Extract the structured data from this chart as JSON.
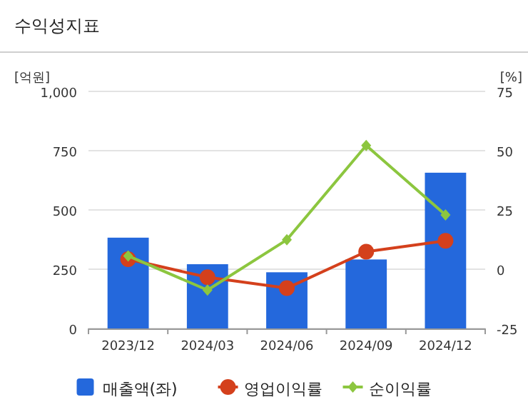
{
  "chart_data": {
    "type": "bar",
    "title": "수익성지표",
    "ylabel": "[억원]",
    "y2label": "[%]",
    "categories": [
      "2023/12",
      "2024/03",
      "2024/06",
      "2024/09",
      "2024/12"
    ],
    "series": [
      {
        "name": "매출액(좌)",
        "color": "#2468dc",
        "values": [
          383,
          271,
          237,
          291,
          657
        ]
      },
      {
        "name": "영업이익률",
        "type": "line",
        "axis": "y2",
        "marker": "circle",
        "color": "#d4401c",
        "values": [
          4.2,
          -3.4,
          -8,
          7.4,
          12
        ]
      },
      {
        "name": "순이익률",
        "type": "line",
        "axis": "y2",
        "marker": "diamond",
        "color": "#8cc63f",
        "values": [
          5.6,
          -8.8,
          12.4,
          52.2,
          22.9
        ]
      }
    ],
    "ylim": [
      0,
      1000
    ],
    "yticks": [
      0,
      {
        "value": 250,
        "label": "250"
      },
      {
        "value": 500,
        "label": "500"
      },
      {
        "value": 750,
        "label": "750"
      },
      {
        "value": 1000,
        "label": "1,000"
      }
    ],
    "y2lim": [
      -25,
      75
    ],
    "y2ticks": [
      -25,
      0,
      25,
      50,
      75
    ],
    "grid": "y",
    "legend": "bottom"
  }
}
